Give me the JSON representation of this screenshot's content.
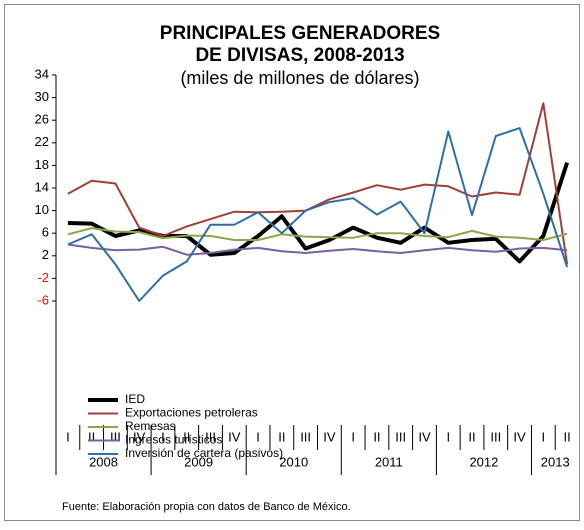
{
  "chart_data": {
    "type": "line",
    "title": [
      "PRINCIPALES GENERADORES",
      "DE DIVISAS, 2008-2013"
    ],
    "subtitle": "(miles de millones de dólares)",
    "categories": [
      "I",
      "II",
      "III",
      "IV",
      "I",
      "II",
      "III",
      "IV",
      "I",
      "II",
      "III",
      "IV",
      "I",
      "II",
      "III",
      "IV",
      "I",
      "II",
      "III",
      "IV",
      "I",
      "II"
    ],
    "years": [
      "2008",
      "2009",
      "2010",
      "2011",
      "2012",
      "2013"
    ],
    "ylim": [
      -6,
      34
    ],
    "yticks": [
      34,
      30,
      26,
      22,
      18,
      14,
      10,
      6,
      2,
      -2,
      -6
    ],
    "negative_tick_color": "#ff0000",
    "series": [
      {
        "name": "IED",
        "color": "#000000",
        "line_width": 4,
        "values": [
          7.8,
          7.7,
          5.5,
          6.5,
          5.5,
          5.5,
          2.2,
          2.5,
          5.5,
          9,
          3.3,
          4.8,
          7,
          5.2,
          4.3,
          7,
          4.3,
          4.8,
          5,
          1,
          5.5,
          18.5
        ]
      },
      {
        "name": "Exportaciones petroleras",
        "color": "#a23f35",
        "line_width": 2,
        "values": [
          13,
          15.3,
          14.8,
          7,
          5.5,
          7.2,
          8.5,
          9.8,
          9.7,
          9.8,
          10,
          12,
          13.2,
          14.5,
          13.7,
          14.6,
          14.3,
          12.5,
          13.2,
          12.8,
          29,
          0.5
        ]
      },
      {
        "name": "Remesas",
        "color": "#8aa84a",
        "line_width": 2,
        "values": [
          5.8,
          6.9,
          6.3,
          6.2,
          5.1,
          5.6,
          5.5,
          4.8,
          4.8,
          5.8,
          5.4,
          5.3,
          5.2,
          6,
          6,
          5.5,
          5.3,
          6.4,
          5.4,
          5.2,
          4.8,
          5.9
        ]
      },
      {
        "name": "Ingresos turísticos",
        "color": "#7b5fa0",
        "line_width": 2,
        "values": [
          4,
          3.4,
          3,
          3.1,
          3.6,
          2.2,
          2.5,
          3.1,
          3.4,
          2.8,
          2.5,
          2.9,
          3.2,
          2.8,
          2.5,
          3,
          3.4,
          3,
          2.7,
          3.3,
          3.4,
          3
        ]
      },
      {
        "name": "Inversión de cartera (pasivos)",
        "color": "#2e6fa8",
        "line_width": 2,
        "values": [
          4,
          5.8,
          0.5,
          -6,
          -1.5,
          1,
          7.5,
          7.5,
          9.7,
          6,
          10,
          11.5,
          12.2,
          9.3,
          11.6,
          6,
          24,
          9.2,
          23.2,
          24.6,
          13,
          0
        ]
      }
    ],
    "source": "Fuente: Elaboración propia con datos de Banco de México."
  }
}
